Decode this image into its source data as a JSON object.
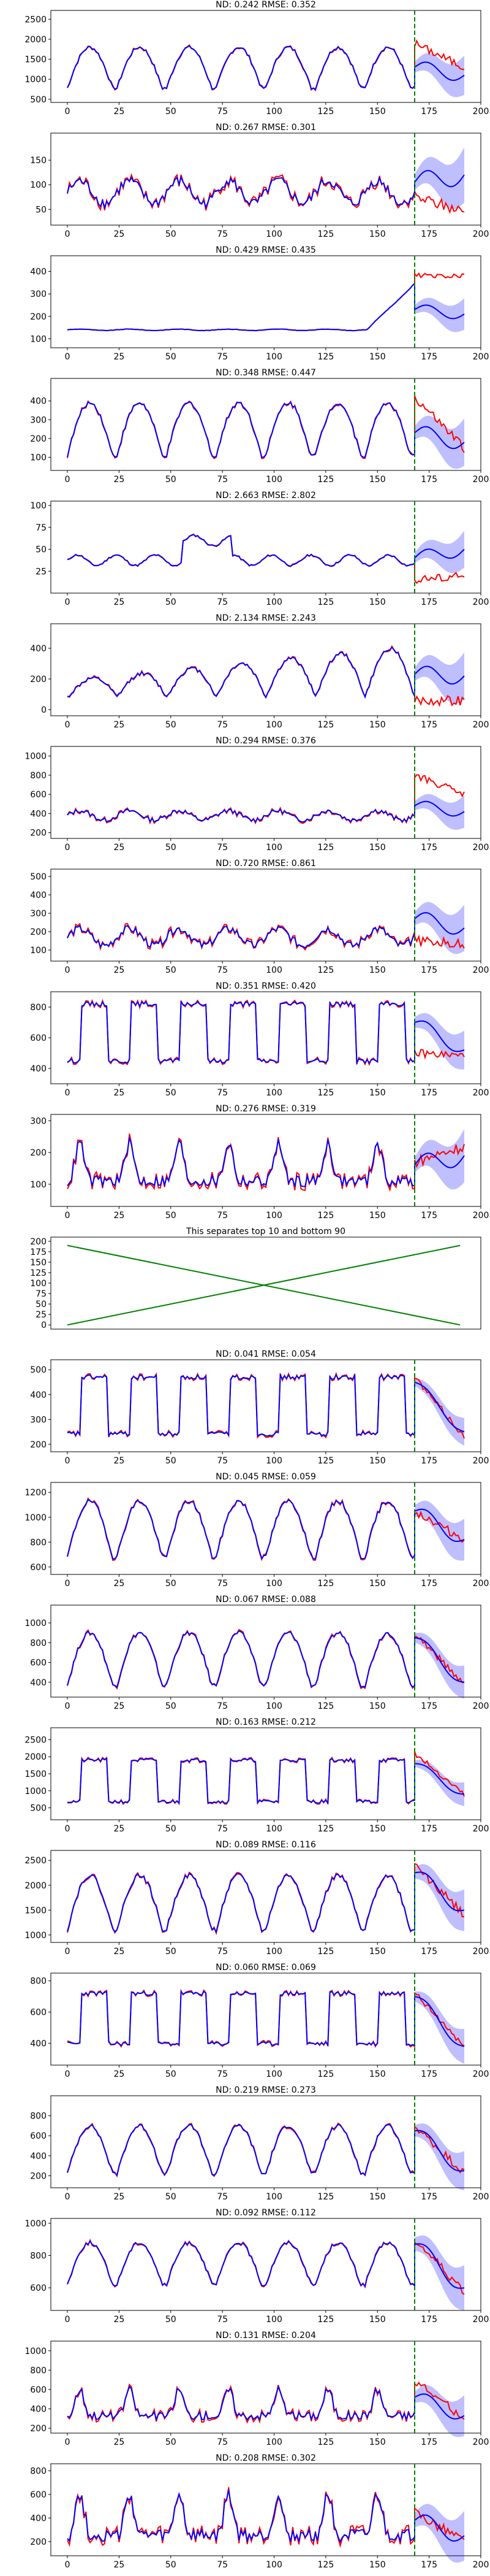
{
  "chart_data": [
    {
      "type": "line",
      "title": "ND: 0.242 RMSE: 0.352",
      "xlim": [
        -8,
        200
      ],
      "ylim": [
        420,
        2720
      ],
      "yticks": [
        500,
        1000,
        1500,
        2000,
        2500
      ],
      "xticks": [
        0,
        25,
        50,
        75,
        100,
        125,
        150,
        175,
        200
      ],
      "forecast_start": 168,
      "base_level": 780,
      "peak": 1800,
      "pattern": "daily",
      "forecast": {
        "mean": 1300,
        "band": 350,
        "end": 1100
      },
      "truth_forecast": {
        "level": 1900,
        "end": 1300
      },
      "series": [
        {
          "name": "",
          "color": "#0000ff"
        },
        {
          "name": "",
          "color": "#ff0000"
        }
      ]
    },
    {
      "type": "line",
      "title": "ND: 0.267 RMSE: 0.301",
      "xlim": [
        -8,
        200
      ],
      "ylim": [
        18,
        205
      ],
      "yticks": [
        50,
        100,
        150
      ],
      "xticks": [
        0,
        25,
        50,
        75,
        100,
        125,
        150,
        175,
        200
      ],
      "forecast_start": 168,
      "base_level": 85,
      "peak": 150,
      "pattern": "noisy",
      "forecast": {
        "mean": 105,
        "band": 40,
        "end": 120
      },
      "truth_forecast": {
        "level": 75,
        "end": 45
      },
      "series": [
        {
          "name": "",
          "color": "#0000ff"
        },
        {
          "name": "",
          "color": "#ff0000"
        }
      ]
    },
    {
      "type": "line",
      "title": "ND: 0.429 RMSE: 0.435",
      "xlim": [
        -8,
        200
      ],
      "ylim": [
        60,
        470
      ],
      "yticks": [
        100,
        200,
        300,
        400
      ],
      "xticks": [
        0,
        25,
        50,
        75,
        100,
        125,
        150,
        175,
        200
      ],
      "forecast_start": 168,
      "base_level": 140,
      "peak": 160,
      "pattern": "flat",
      "forecast": {
        "mean": 230,
        "band": 50,
        "end": 210
      },
      "truth_forecast": {
        "level": 380,
        "end": 380
      },
      "series": [
        {
          "name": "",
          "color": "#0000ff"
        },
        {
          "name": "",
          "color": "#ff0000"
        }
      ]
    },
    {
      "type": "line",
      "title": "ND: 0.348 RMSE: 0.447",
      "xlim": [
        -8,
        200
      ],
      "ylim": [
        30,
        520
      ],
      "yticks": [
        100,
        200,
        300,
        400
      ],
      "xticks": [
        0,
        25,
        50,
        75,
        100,
        125,
        150,
        175,
        200
      ],
      "forecast_start": 168,
      "base_level": 110,
      "peak": 390,
      "pattern": "daily",
      "forecast": {
        "mean": 230,
        "band": 90,
        "end": 180
      },
      "truth_forecast": {
        "level": 420,
        "end": 150
      },
      "series": [
        {
          "name": "",
          "color": "#0000ff"
        },
        {
          "name": "",
          "color": "#ff0000"
        }
      ]
    },
    {
      "type": "line",
      "title": "ND: 2.663 RMSE: 2.802",
      "xlim": [
        -8,
        200
      ],
      "ylim": [
        0,
        105
      ],
      "yticks": [
        25,
        50,
        75,
        100
      ],
      "xticks": [
        0,
        25,
        50,
        75,
        100,
        125,
        150,
        175,
        200
      ],
      "forecast_start": 168,
      "base_level": 30,
      "peak": 55,
      "pattern": "hump",
      "forecast": {
        "mean": 40,
        "band": 15,
        "end": 50
      },
      "truth_forecast": {
        "level": 15,
        "end": 20
      },
      "series": [
        {
          "name": "",
          "color": "#0000ff"
        },
        {
          "name": "",
          "color": "#ff0000"
        }
      ]
    },
    {
      "type": "line",
      "title": "ND: 2.134 RMSE: 2.243",
      "xlim": [
        -8,
        200
      ],
      "ylim": [
        -40,
        560
      ],
      "yticks": [
        0,
        200,
        400
      ],
      "xticks": [
        0,
        25,
        50,
        75,
        100,
        125,
        150,
        175,
        200
      ],
      "forecast_start": 168,
      "base_level": 80,
      "peak": 350,
      "pattern": "ramp",
      "forecast": {
        "mean": 230,
        "band": 110,
        "end": 220
      },
      "truth_forecast": {
        "level": 60,
        "end": 60
      },
      "series": [
        {
          "name": "",
          "color": "#0000ff"
        },
        {
          "name": "",
          "color": "#ff0000"
        }
      ]
    },
    {
      "type": "line",
      "title": "ND: 0.294 RMSE: 0.376",
      "xlim": [
        -8,
        200
      ],
      "ylim": [
        140,
        1100
      ],
      "yticks": [
        200,
        400,
        600,
        800,
        1000
      ],
      "xticks": [
        0,
        25,
        50,
        75,
        100,
        125,
        150,
        175,
        200
      ],
      "forecast_start": 168,
      "base_level": 380,
      "peak": 520,
      "pattern": "noisy",
      "forecast": {
        "mean": 480,
        "band": 120,
        "end": 420
      },
      "truth_forecast": {
        "level": 800,
        "end": 600
      },
      "series": [
        {
          "name": "",
          "color": "#0000ff"
        },
        {
          "name": "",
          "color": "#ff0000"
        }
      ]
    },
    {
      "type": "line",
      "title": "ND: 0.720 RMSE: 0.861",
      "xlim": [
        -8,
        200
      ],
      "ylim": [
        40,
        540
      ],
      "yticks": [
        100,
        200,
        300,
        400,
        500
      ],
      "xticks": [
        0,
        25,
        50,
        75,
        100,
        125,
        150,
        175,
        200
      ],
      "forecast_start": 168,
      "base_level": 170,
      "peak": 300,
      "pattern": "noisy",
      "forecast": {
        "mean": 270,
        "band": 90,
        "end": 220
      },
      "truth_forecast": {
        "level": 150,
        "end": 130
      },
      "series": [
        {
          "name": "",
          "color": "#0000ff"
        },
        {
          "name": "",
          "color": "#ff0000"
        }
      ]
    },
    {
      "type": "line",
      "title": "ND: 0.351 RMSE: 0.420",
      "xlim": [
        -8,
        200
      ],
      "ylim": [
        300,
        900
      ],
      "yticks": [
        400,
        600,
        800
      ],
      "xticks": [
        0,
        25,
        50,
        75,
        100,
        125,
        150,
        175,
        200
      ],
      "forecast_start": 168,
      "base_level": 430,
      "peak": 820,
      "pattern": "block",
      "forecast": {
        "mean": 700,
        "band": 90,
        "end": 520
      },
      "truth_forecast": {
        "level": 500,
        "end": 480
      },
      "series": [
        {
          "name": "",
          "color": "#0000ff"
        },
        {
          "name": "",
          "color": "#ff0000"
        }
      ]
    },
    {
      "type": "line",
      "title": "ND: 0.276 RMSE: 0.319",
      "xlim": [
        -8,
        200
      ],
      "ylim": [
        30,
        320
      ],
      "yticks": [
        100,
        200,
        300
      ],
      "xticks": [
        0,
        25,
        50,
        75,
        100,
        125,
        150,
        175,
        200
      ],
      "forecast_start": 168,
      "base_level": 110,
      "peak": 230,
      "pattern": "spiky",
      "forecast": {
        "mean": 160,
        "band": 60,
        "end": 190
      },
      "truth_forecast": {
        "level": 170,
        "end": 220
      },
      "series": [
        {
          "name": "",
          "color": "#0000ff"
        },
        {
          "name": "",
          "color": "#ff0000"
        }
      ]
    },
    {
      "type": "line",
      "title": "This separates top 10 and bottom 90",
      "xlim": [
        -8,
        200
      ],
      "ylim": [
        -10,
        210
      ],
      "yticks": [
        0,
        25,
        50,
        75,
        100,
        125,
        150,
        175,
        200
      ],
      "xticks": [],
      "separator": true,
      "series": [
        {
          "name": "",
          "color": "#008000",
          "x": [
            0,
            190
          ],
          "y": [
            0,
            190
          ]
        },
        {
          "name": "",
          "color": "#008000",
          "x": [
            0,
            190
          ],
          "y": [
            190,
            0
          ]
        }
      ]
    },
    {
      "type": "line",
      "title": "ND: 0.041 RMSE: 0.054",
      "xlim": [
        -8,
        200
      ],
      "ylim": [
        170,
        540
      ],
      "yticks": [
        200,
        300,
        400,
        500
      ],
      "xticks": [
        0,
        25,
        50,
        75,
        100,
        125,
        150,
        175,
        200
      ],
      "forecast_start": 168,
      "base_level": 230,
      "peak": 470,
      "pattern": "block",
      "forecast": {
        "mean": 450,
        "band": 40,
        "end": 250
      },
      "truth_forecast": {
        "level": 470,
        "end": 230
      },
      "series": [
        {
          "name": "",
          "color": "#0000ff"
        },
        {
          "name": "",
          "color": "#ff0000"
        }
      ]
    },
    {
      "type": "line",
      "title": "ND: 0.045 RMSE: 0.059",
      "xlim": [
        -8,
        200
      ],
      "ylim": [
        540,
        1280
      ],
      "yticks": [
        600,
        800,
        1000,
        1200
      ],
      "xticks": [
        0,
        25,
        50,
        75,
        100,
        125,
        150,
        175,
        200
      ],
      "forecast_start": 168,
      "base_level": 680,
      "peak": 1130,
      "pattern": "daily",
      "forecast": {
        "mean": 1050,
        "band": 120,
        "end": 820
      },
      "truth_forecast": {
        "level": 1050,
        "end": 820
      },
      "series": [
        {
          "name": "",
          "color": "#0000ff"
        },
        {
          "name": "",
          "color": "#ff0000"
        }
      ]
    },
    {
      "type": "line",
      "title": "ND: 0.067 RMSE: 0.088",
      "xlim": [
        -8,
        200
      ],
      "ylim": [
        250,
        1180
      ],
      "yticks": [
        400,
        600,
        800,
        1000
      ],
      "xticks": [
        0,
        25,
        50,
        75,
        100,
        125,
        150,
        175,
        200
      ],
      "forecast_start": 168,
      "base_level": 370,
      "peak": 900,
      "pattern": "daily",
      "forecast": {
        "mean": 850,
        "band": 120,
        "end": 400
      },
      "truth_forecast": {
        "level": 900,
        "end": 380
      },
      "series": [
        {
          "name": "",
          "color": "#0000ff"
        },
        {
          "name": "",
          "color": "#ff0000"
        }
      ]
    },
    {
      "type": "line",
      "title": "ND: 0.163 RMSE: 0.212",
      "xlim": [
        -8,
        200
      ],
      "ylim": [
        150,
        2850
      ],
      "yticks": [
        500,
        1000,
        1500,
        2000,
        2500
      ],
      "xticks": [
        0,
        25,
        50,
        75,
        100,
        125,
        150,
        175,
        200
      ],
      "forecast_start": 168,
      "base_level": 620,
      "peak": 1900,
      "pattern": "block",
      "forecast": {
        "mean": 1800,
        "band": 250,
        "end": 900
      },
      "truth_forecast": {
        "level": 2100,
        "end": 900
      },
      "series": [
        {
          "name": "",
          "color": "#0000ff"
        },
        {
          "name": "",
          "color": "#ff0000"
        }
      ]
    },
    {
      "type": "line",
      "title": "ND: 0.089 RMSE: 0.116",
      "xlim": [
        -8,
        200
      ],
      "ylim": [
        850,
        2700
      ],
      "yticks": [
        1000,
        1500,
        2000,
        2500
      ],
      "xticks": [
        0,
        25,
        50,
        75,
        100,
        125,
        150,
        175,
        200
      ],
      "forecast_start": 168,
      "base_level": 1100,
      "peak": 2200,
      "pattern": "daily",
      "forecast": {
        "mean": 2250,
        "band": 300,
        "end": 1500
      },
      "truth_forecast": {
        "level": 2400,
        "end": 1400
      },
      "series": [
        {
          "name": "",
          "color": "#0000ff"
        },
        {
          "name": "",
          "color": "#ff0000"
        }
      ]
    },
    {
      "type": "line",
      "title": "ND: 0.060 RMSE: 0.069",
      "xlim": [
        -8,
        200
      ],
      "ylim": [
        260,
        850
      ],
      "yticks": [
        400,
        600,
        800
      ],
      "xticks": [
        0,
        25,
        50,
        75,
        100,
        125,
        150,
        175,
        200
      ],
      "forecast_start": 168,
      "base_level": 380,
      "peak": 720,
      "pattern": "block",
      "forecast": {
        "mean": 700,
        "band": 80,
        "end": 380
      },
      "truth_forecast": {
        "level": 720,
        "end": 380
      },
      "series": [
        {
          "name": "",
          "color": "#0000ff"
        },
        {
          "name": "",
          "color": "#ff0000"
        }
      ]
    },
    {
      "type": "line",
      "title": "ND: 0.219 RMSE: 0.273",
      "xlim": [
        -8,
        200
      ],
      "ylim": [
        80,
        1000
      ],
      "yticks": [
        200,
        400,
        600,
        800
      ],
      "xticks": [
        0,
        25,
        50,
        75,
        100,
        125,
        150,
        175,
        200
      ],
      "forecast_start": 168,
      "base_level": 220,
      "peak": 700,
      "pattern": "daily",
      "forecast": {
        "mean": 650,
        "band": 140,
        "end": 250
      },
      "truth_forecast": {
        "level": 700,
        "end": 230
      },
      "series": [
        {
          "name": "",
          "color": "#0000ff"
        },
        {
          "name": "",
          "color": "#ff0000"
        }
      ]
    },
    {
      "type": "line",
      "title": "ND: 0.092 RMSE: 0.112",
      "xlim": [
        -8,
        200
      ],
      "ylim": [
        460,
        1030
      ],
      "yticks": [
        600,
        800,
        1000
      ],
      "xticks": [
        0,
        25,
        50,
        75,
        100,
        125,
        150,
        175,
        200
      ],
      "forecast_start": 168,
      "base_level": 620,
      "peak": 880,
      "pattern": "daily",
      "forecast": {
        "mean": 870,
        "band": 100,
        "end": 600
      },
      "truth_forecast": {
        "level": 900,
        "end": 580
      },
      "series": [
        {
          "name": "",
          "color": "#0000ff"
        },
        {
          "name": "",
          "color": "#ff0000"
        }
      ]
    },
    {
      "type": "line",
      "title": "ND: 0.131 RMSE: 0.204",
      "xlim": [
        -8,
        200
      ],
      "ylim": [
        150,
        1100
      ],
      "yticks": [
        200,
        400,
        600,
        800,
        1000
      ],
      "xticks": [
        0,
        25,
        50,
        75,
        100,
        125,
        150,
        175,
        200
      ],
      "forecast_start": 168,
      "base_level": 330,
      "peak": 600,
      "pattern": "spiky",
      "forecast": {
        "mean": 520,
        "band": 150,
        "end": 330
      },
      "truth_forecast": {
        "level": 700,
        "end": 300
      },
      "series": [
        {
          "name": "",
          "color": "#0000ff"
        },
        {
          "name": "",
          "color": "#ff0000"
        }
      ]
    },
    {
      "type": "line",
      "title": "ND: 0.208 RMSE: 0.302",
      "xlim": [
        -8,
        200
      ],
      "ylim": [
        80,
        860
      ],
      "yticks": [
        200,
        400,
        600,
        800
      ],
      "xticks": [
        0,
        25,
        50,
        75,
        100,
        125,
        150,
        175,
        200
      ],
      "forecast_start": 168,
      "base_level": 250,
      "peak": 600,
      "pattern": "spiky",
      "forecast": {
        "mean": 380,
        "band": 150,
        "end": 250
      },
      "truth_forecast": {
        "level": 450,
        "end": 200
      },
      "series": [
        {
          "name": "",
          "color": "#0000ff"
        },
        {
          "name": "",
          "color": "#ff0000"
        }
      ]
    }
  ]
}
